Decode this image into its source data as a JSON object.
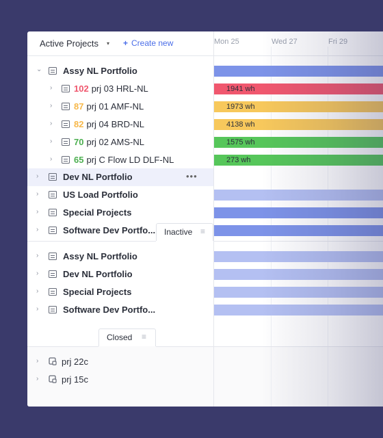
{
  "header": {
    "title": "Active Projects",
    "caret_icon": "caret-down-icon",
    "create_label": "Create new",
    "create_icon": "plus-icon"
  },
  "timeline": {
    "days": [
      "Mon 25",
      "Wed 27",
      "Fri 29"
    ]
  },
  "colors": {
    "portfolio_bar": "#7d93e8",
    "portfolio_bar_light": "#b4c0f2",
    "red": "#f0576e",
    "orange": "#f7b84a",
    "green": "#56c65a",
    "text": "#2b2f3a",
    "accent": "#4b6ee8"
  },
  "active": [
    {
      "name": "Assy NL Portfolio",
      "bold": true,
      "expanded": true
    },
    {
      "count": "102",
      "count_color": "#f0576e",
      "name": "prj 03 HRL-NL",
      "bar_label": "1941 wh",
      "bar_color": "#f0576e"
    },
    {
      "count": "87",
      "count_color": "#f7b84a",
      "name": "prj 01 AMF-NL",
      "bar_label": "1973 wh",
      "bar_color": "#f7c85c"
    },
    {
      "count": "82",
      "count_color": "#f7b84a",
      "name": "prj 04 BRD-NL",
      "bar_label": "4138 wh",
      "bar_color": "#f7c85c"
    },
    {
      "count": "70",
      "count_color": "#4caf50",
      "name": "prj 02 AMS-NL",
      "bar_label": "1575 wh",
      "bar_color": "#56c65a"
    },
    {
      "count": "65",
      "count_color": "#4caf50",
      "name": "prj C Flow LD DLF-NL",
      "bar_label": "273 wh",
      "bar_color": "#56c65a"
    },
    {
      "name": "Dev NL Portfolio",
      "bold": true,
      "highlighted": true,
      "more": "•••"
    },
    {
      "name": "US Load Portfolio",
      "bold": true
    },
    {
      "name": "Special Projects",
      "bold": true
    },
    {
      "name": "Software Dev Portfo...",
      "bold": true
    }
  ],
  "inactive": {
    "tab_label": "Inactive",
    "menu_icon": "list-menu-icon",
    "items": [
      "Assy NL Portfolio",
      "Dev NL Portfolio",
      "Special Projects",
      "Software Dev Portfo..."
    ]
  },
  "closed": {
    "tab_label": "Closed",
    "menu_icon": "list-menu-icon",
    "items": [
      "prj 22c",
      "prj 15c"
    ]
  }
}
